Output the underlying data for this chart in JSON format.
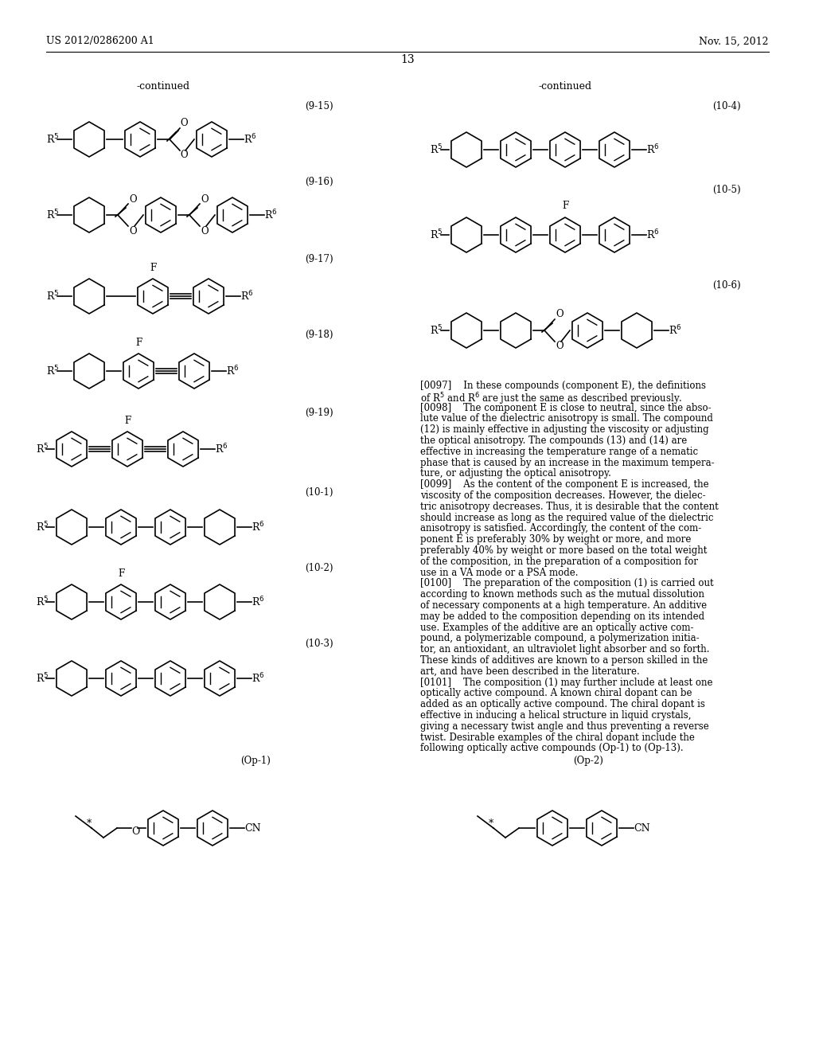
{
  "bg_color": "#ffffff",
  "header_left": "US 2012/0286200 A1",
  "header_right": "Nov. 15, 2012",
  "page_number": "13",
  "fig_width": 10.24,
  "fig_height": 13.2,
  "text_paragraphs": [
    "[0097]    In these compounds (component E), the definitions",
    "of Rµ and R¶ are just the same as described previously.",
    "[0098]    The component E is close to neutral, since the abso-",
    "lute value of the dielectric anisotropy is small. The compound",
    "(12) is mainly effective in adjusting the viscosity or adjusting",
    "the optical anisotropy. The compounds (13) and (14) are",
    "effective in increasing the temperature range of a nematic",
    "phase that is caused by an increase in the maximum tempera-",
    "ture, or adjusting the optical anisotropy.",
    "[0099]    As the content of the component E is increased, the",
    "viscosity of the composition decreases. However, the dielec-",
    "tric anisotropy decreases. Thus, it is desirable that the content",
    "should increase as long as the required value of the dielectric",
    "anisotropy is satisfied. Accordingly, the content of the com-",
    "ponent E is preferably 30% by weight or more, and more",
    "preferably 40% by weight or more based on the total weight",
    "of the composition, in the preparation of a composition for",
    "use in a VA mode or a PSA mode.",
    "[0100]    The preparation of the composition (1) is carried out",
    "according to known methods such as the mutual dissolution",
    "of necessary components at a high temperature. An additive",
    "may be added to the composition depending on its intended",
    "use. Examples of the additive are an optically active com-",
    "pound, a polymerizable compound, a polymerization initia-",
    "tor, an antioxidant, an ultraviolet light absorber and so forth.",
    "These kinds of additives are known to a person skilled in the",
    "art, and have been described in the literature.",
    "[0101]    The composition (1) may further include at least one",
    "optically active compound. A known chiral dopant can be",
    "added as an optically active compound. The chiral dopant is",
    "effective in inducing a helical structure in liquid crystals,",
    "giving a necessary twist angle and thus preventing a reverse",
    "twist. Desirable examples of the chiral dopant include the",
    "following optically active compounds (Op-1) to (Op-13)."
  ]
}
